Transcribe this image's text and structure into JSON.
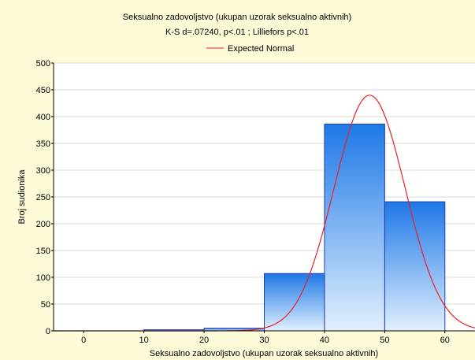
{
  "chart_data": {
    "type": "bar",
    "title": "Seksualno zadovoljstvo (ukupan uzorak seksualno aktivnih)",
    "subtitle": "K-S d=.07240, p<.01 ; Lilliefors p<.01",
    "xlabel": "Seksualno zadovoljstvo (ukupan uzorak seksualno aktivnih)",
    "ylabel": "Broj sudionika",
    "xlim": [
      -5,
      65
    ],
    "ylim": [
      0,
      500
    ],
    "x_ticks": [
      "0",
      "10",
      "20",
      "30",
      "40",
      "50",
      "60"
    ],
    "y_ticks": [
      "0",
      "50",
      "100",
      "150",
      "200",
      "250",
      "300",
      "350",
      "400",
      "450",
      "500"
    ],
    "bins": [
      {
        "from": 10,
        "to": 20,
        "value": 2
      },
      {
        "from": 20,
        "to": 30,
        "value": 5
      },
      {
        "from": 30,
        "to": 40,
        "value": 107
      },
      {
        "from": 40,
        "to": 50,
        "value": 386
      },
      {
        "from": 50,
        "to": 60,
        "value": 241
      }
    ],
    "normal_curve": {
      "name": "Expected Normal",
      "mean": 47.5,
      "sd": 5.9,
      "peak": 440,
      "color": "#e8202a"
    },
    "legend": {
      "placement": "top-center",
      "entries": [
        "Expected Normal"
      ]
    },
    "grid": true,
    "colors": {
      "bar_top": "#1e78e6",
      "bar_bottom": "#e2f0ff",
      "bar_stroke": "#1b3fb5",
      "background": "#fefbd9",
      "plot_bg": "#ffffff"
    }
  }
}
